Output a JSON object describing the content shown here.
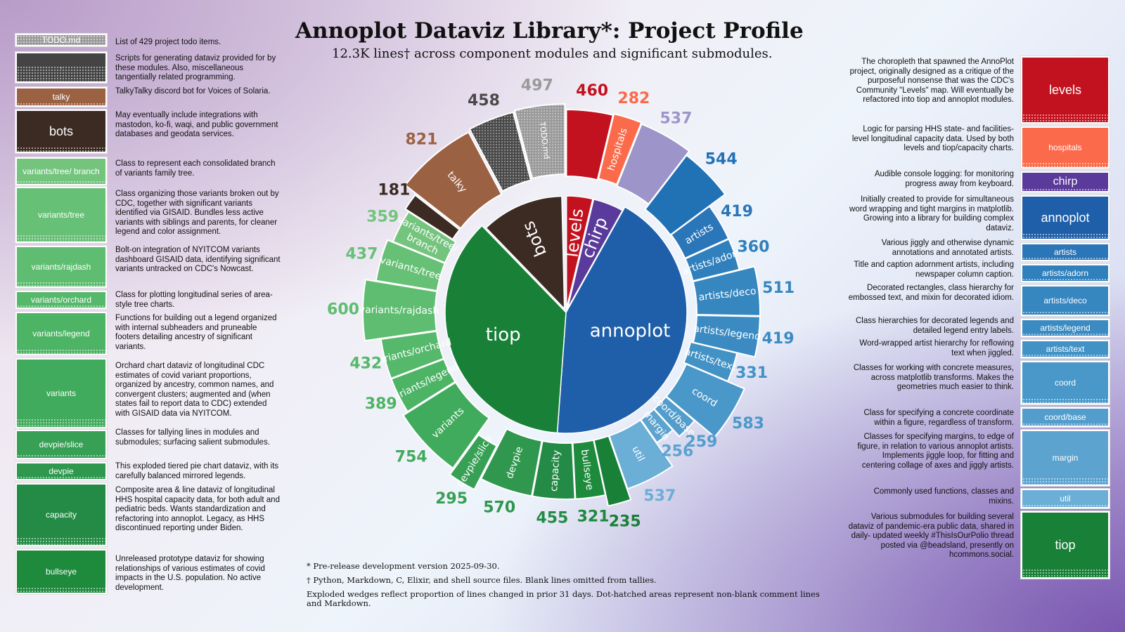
{
  "title": "Annoplot Dataviz Library*: Project Profile",
  "subtitle": "12.3K lines† across component modules and significant submodules.",
  "footnotes": [
    "* Pre-release development version 2025-09-30.",
    "† Python, Markdown, C, Elixir, and shell source files. Blank lines omitted from tallies.",
    "Exploded wedges reflect proportion of lines changed in prior 31 days. Dot-hatched areas represent non-blank comment lines and Markdown."
  ],
  "colors": {
    "tiop": "#198038",
    "annoplot": "#1f5fa9",
    "levels": "#c3121f",
    "chirp": "#5a3b9b",
    "bots": "#3b2b22",
    "hospitals": "#fb6a4a",
    "talky": "#9b6143",
    "misc": "#444444",
    "todo": "#9a9a9a"
  },
  "chart_data": {
    "type": "pie",
    "title": "Annoplot Dataviz Library*: Project Profile",
    "subtitle": "12.3K lines† across component modules and significant submodules.",
    "inner": [
      {
        "name": "annoplot",
        "value": 5296,
        "color": "#1f5fa9"
      },
      {
        "name": "tiop",
        "value": 4503,
        "color": "#198038"
      },
      {
        "name": "bots",
        "value": 1460,
        "color": "#3b2b22"
      },
      {
        "name": "levels",
        "value": 460,
        "color": "#c3121f"
      },
      {
        "name": "chirp",
        "value": 537,
        "color": "#5a3b9b"
      }
    ],
    "outer": [
      {
        "name": "levels",
        "label": "",
        "value": 460,
        "color": "#c3121f"
      },
      {
        "name": "hospitals",
        "label": "hospitals",
        "value": 282,
        "color": "#fb6a4a"
      },
      {
        "name": "chirp",
        "label": "",
        "value": 537,
        "color": "#9d95c9"
      },
      {
        "name": "annoplot",
        "label": "",
        "value": 544,
        "color": "#2171b5"
      },
      {
        "name": "artists",
        "label": "artists",
        "value": 419,
        "color": "#2b76b8"
      },
      {
        "name": "artists/adorn",
        "label": "artists/adorn",
        "value": 360,
        "color": "#3080bd"
      },
      {
        "name": "artists/deco",
        "label": "artists/deco",
        "value": 511,
        "color": "#3686c0"
      },
      {
        "name": "artists/legend",
        "label": "artists/legend",
        "value": 419,
        "color": "#3b8bc2"
      },
      {
        "name": "artists/text",
        "label": "artists/text",
        "value": 331,
        "color": "#4292c6"
      },
      {
        "name": "coord",
        "label": "coord",
        "value": 583,
        "color": "#4a98c9"
      },
      {
        "name": "coord/base",
        "label": "coord/base",
        "value": 259,
        "color": "#529dcc"
      },
      {
        "name": "margin",
        "label": "margin",
        "value": 256,
        "color": "#5ca3d0"
      },
      {
        "name": "util",
        "label": "util",
        "value": 537,
        "color": "#6baed6"
      },
      {
        "name": "tiop",
        "label": "",
        "value": 235,
        "color": "#198038"
      },
      {
        "name": "bullseye",
        "label": "bullseye",
        "value": 321,
        "color": "#1d8a3c"
      },
      {
        "name": "capacity",
        "label": "capacity",
        "value": 455,
        "color": "#238b45"
      },
      {
        "name": "devpie",
        "label": "devpie",
        "value": 570,
        "color": "#2f974e"
      },
      {
        "name": "devpie/slice",
        "label": "devpie/slice",
        "value": 295,
        "color": "#37a055"
      },
      {
        "name": "variants",
        "label": "variants",
        "value": 754,
        "color": "#41ab5d"
      },
      {
        "name": "variants/legend",
        "label": "variants/legend",
        "value": 389,
        "color": "#4db465"
      },
      {
        "name": "variants/orchard",
        "label": "variants/orchard",
        "value": 432,
        "color": "#55b86a"
      },
      {
        "name": "variants/rajdash",
        "label": "variants/rajdash",
        "value": 600,
        "color": "#5ebd70"
      },
      {
        "name": "variants/tree",
        "label": "variants/tree",
        "value": 437,
        "color": "#66c075"
      },
      {
        "name": "variants/tree/branch",
        "label": "variants/tree/\nbranch",
        "value": 359,
        "color": "#74c47e"
      },
      {
        "name": "bots",
        "label": "",
        "value": 181,
        "color": "#3b2b22"
      },
      {
        "name": "talky",
        "label": "talky",
        "value": 821,
        "color": "#9b6143"
      },
      {
        "name": "misc",
        "label": "",
        "value": 458,
        "color": "#4a4a4a"
      },
      {
        "name": "TODO.md",
        "label": "TODO.md",
        "value": 497,
        "color": "#9a9a9a"
      }
    ]
  },
  "left_legend": [
    {
      "label": "TODO.md",
      "desc": "List of 429 project todo items.",
      "color": "#9a9a9a"
    },
    {
      "label": "·",
      "desc": "Scripts for generating dataviz provided for by these modules. Also, miscellaneous tangentially related programming.",
      "color": "#444444"
    },
    {
      "label": "talky",
      "desc": "TalkyTalky discord bot for Voices of Solaria.",
      "color": "#9b6143"
    },
    {
      "label": "bots",
      "desc": "May eventually include integrations with mastodon, ko-fi, waqi, and public government databases and geodata services.",
      "color": "#3b2b22"
    },
    {
      "label": "variants/tree/ branch",
      "desc": "Class to represent each consolidated branch of variants family tree.",
      "color": "#74c47e"
    },
    {
      "label": "variants/tree",
      "desc": "Class organizing those variants broken out by CDC, together with significant variants identified via GISAID. Bundles less active variants with siblings and parents, for cleaner legend and color assignment.",
      "color": "#66c075"
    },
    {
      "label": "variants/rajdash",
      "desc": "Bolt-on integration of NYITCOM variants dashboard GISAID data, identifying significant variants untracked on CDC's Nowcast.",
      "color": "#5ebd70"
    },
    {
      "label": "variants/orchard",
      "desc": "Class for plotting longitudinal series of area-style tree charts.",
      "color": "#55b86a"
    },
    {
      "label": "variants/legend",
      "desc": "Functions for building out a legend organized with internal subheaders and pruneable footers detailing ancestry of significant variants.",
      "color": "#4db465"
    },
    {
      "label": "variants",
      "desc": "Orchard chart dataviz of longitudinal CDC estimates of covid variant proportions, organized by ancestry, common names, and convergent clusters; augmented and (when states fail to report data to CDC) extended with GISAID data via NYITCOM.",
      "color": "#41ab5d"
    },
    {
      "label": "devpie/slice",
      "desc": "Classes for tallying lines in modules and submodules; surfacing salient submodules.",
      "color": "#37a055"
    },
    {
      "label": "devpie",
      "desc": "This exploded tiered pie chart dataviz, with its carefully balanced mirrored legends.",
      "color": "#2f974e"
    },
    {
      "label": "capacity",
      "desc": "Composite area & line dataviz of longitudinal HHS hospital capacity data, for both adult and pediatric beds. Wants standardization and refactoring into annoplot. Legacy, as HHS discontinued reporting under Biden.",
      "color": "#238b45"
    },
    {
      "label": "bullseye",
      "desc": "Unreleased prototype dataviz for showing relationships of various estimates of covid impacts in the U.S. population. No active development.",
      "color": "#1d8a3c"
    }
  ],
  "right_legend": [
    {
      "label": "levels",
      "desc": "The choropleth that spawned the AnnoPlot project, originally designed as a critique of the purposeful nonsense that was the CDC's Community \"Levels\" map. Will eventually be refactored into tiop and annoplot modules.",
      "color": "#c3121f"
    },
    {
      "label": "hospitals",
      "desc": "Logic for parsing HHS state- and facilities-level longitudinal capacity data. Used by both levels and tiop/capacity charts.",
      "color": "#fb6a4a"
    },
    {
      "label": "chirp",
      "desc": "Audible console logging: for monitoring progress away from keyboard.",
      "color": "#5a3b9b"
    },
    {
      "label": "annoplot",
      "desc": "Initially created to provide for simultaneous word wrapping and tight margins in matplotlib. Growing into a library for building complex dataviz.",
      "color": "#1f5fa9"
    },
    {
      "label": "artists",
      "desc": "Various jiggly and otherwise dynamic annotations and annotated artists.",
      "color": "#2b76b8"
    },
    {
      "label": "artists/adorn",
      "desc": "Title and caption adornment artists, including newspaper column caption.",
      "color": "#3080bd"
    },
    {
      "label": "artists/deco",
      "desc": "Decorated rectangles, class hierarchy for embossed text, and mixin for decorated idiom.",
      "color": "#3686c0"
    },
    {
      "label": "artists/legend",
      "desc": "Class hierarchies for decorated legends and detailed legend entry labels.",
      "color": "#3b8bc2"
    },
    {
      "label": "artists/text",
      "desc": "Word-wrapped artist hierarchy for reflowing text when jiggled.",
      "color": "#4292c6"
    },
    {
      "label": "coord",
      "desc": "Classes for working with concrete measures, across matplotlib transforms. Makes the geometries much easier to think.",
      "color": "#4a98c9"
    },
    {
      "label": "coord/base",
      "desc": "Class for specifying a concrete coordinate within a figure, regardless of transform.",
      "color": "#529dcc"
    },
    {
      "label": "margin",
      "desc": "Classes for specifying margins, to edge of figure, in relation to various annoplot artists. Implements jiggle loop, for fitting and centering collage of axes and jiggly artists.",
      "color": "#5ca3d0"
    },
    {
      "label": "util",
      "desc": "Commonly used functions, classes and mixins.",
      "color": "#6baed6"
    },
    {
      "label": "tiop",
      "desc": "Various submodules for building several dataviz of pandemic-era public data, shared in daily- updated weekly #ThisIsOurPolio thread posted via @beadsland, presently on hcommons.social.",
      "color": "#198038"
    }
  ]
}
